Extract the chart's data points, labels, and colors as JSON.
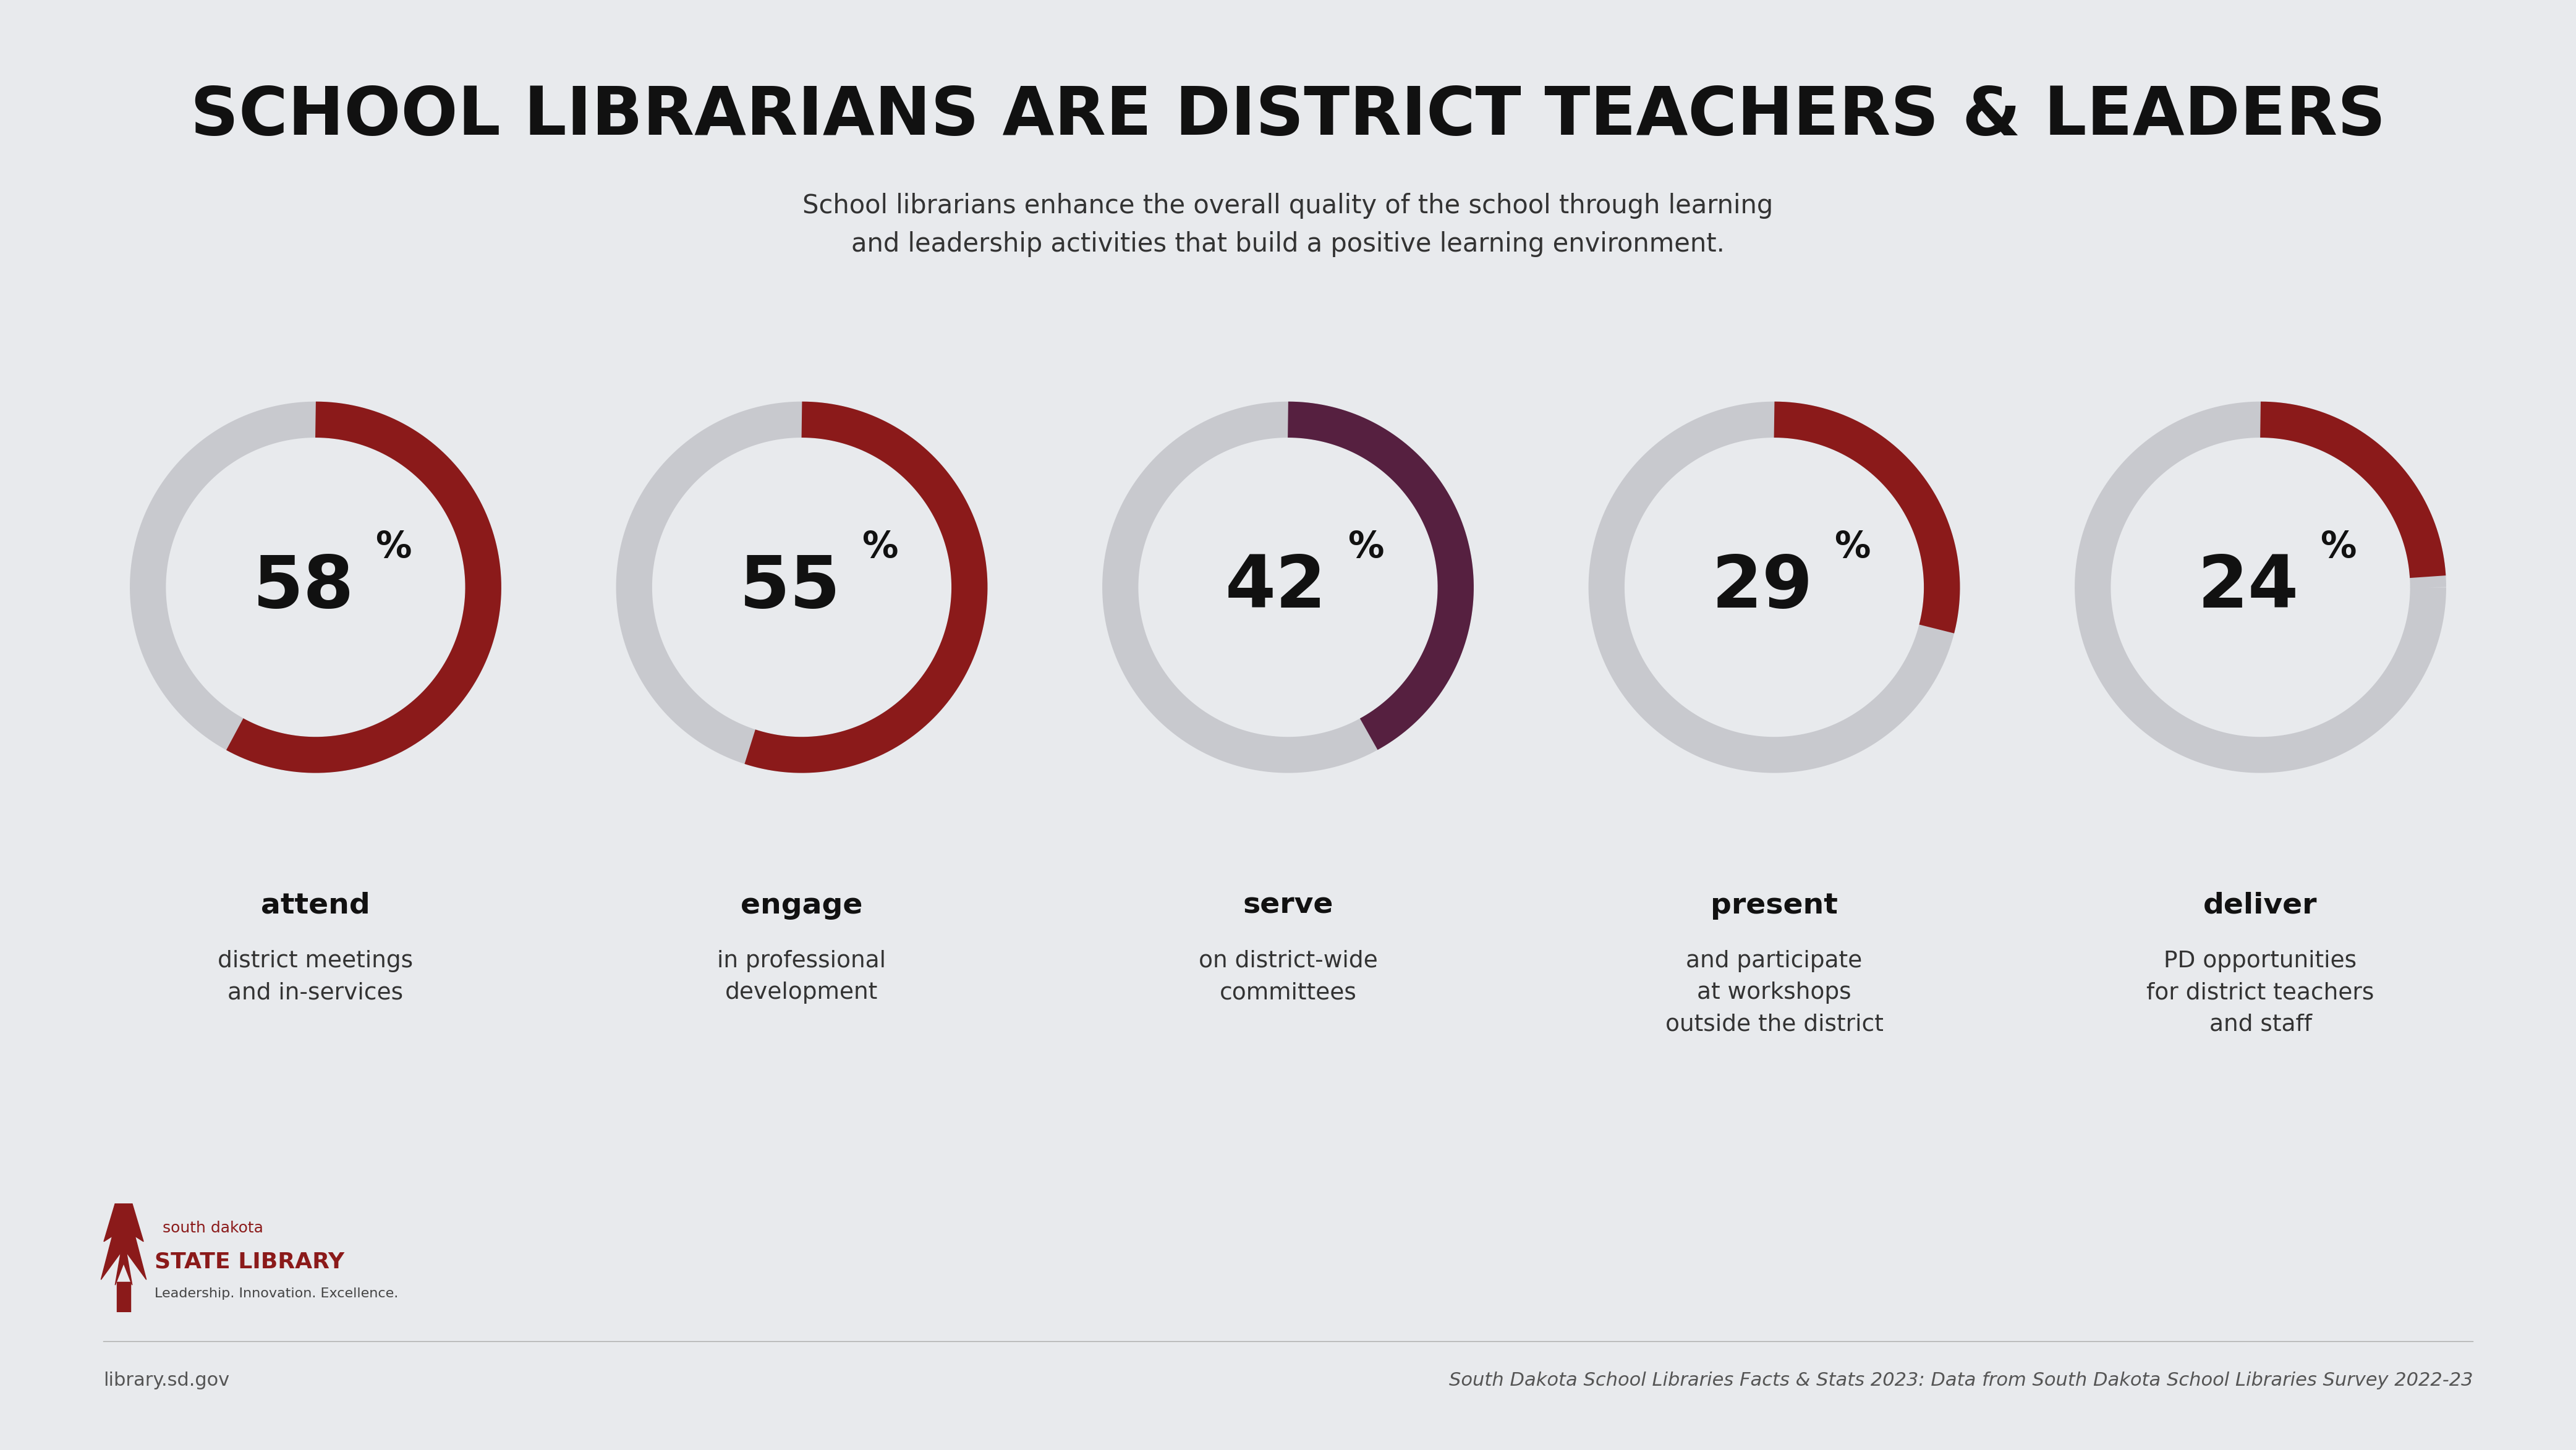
{
  "background_color": "#E8EAED",
  "title": "SCHOOL LIBRARIANS ARE DISTRICT TEACHERS & LEADERS",
  "subtitle": "School librarians enhance the overall quality of the school through learning\nand leadership activities that build a positive learning environment.",
  "title_fontsize": 78,
  "subtitle_fontsize": 30,
  "charts": [
    {
      "pct": 58,
      "color": "#8B1A1A",
      "label_bold": "attend",
      "label_text": "district meetings\nand in-services"
    },
    {
      "pct": 55,
      "color": "#8B1A1A",
      "label_bold": "engage",
      "label_text": "in professional\ndevelopment"
    },
    {
      "pct": 42,
      "color": "#562040",
      "label_bold": "serve",
      "label_text": "on district-wide\ncommittees"
    },
    {
      "pct": 29,
      "color": "#8B1A1A",
      "label_bold": "present",
      "label_text": "and participate\nat workshops\noutside the district"
    },
    {
      "pct": 24,
      "color": "#8B1A1A",
      "label_bold": "deliver",
      "label_text": "PD opportunities\nfor district teachers\nand staff"
    }
  ],
  "gray_color": "#C8C9CE",
  "donut_linewidth": 42,
  "pct_fontsize": 85,
  "pct_sup_fontsize": 42,
  "label_bold_fontsize": 34,
  "label_text_fontsize": 27,
  "footer_left": "library.sd.gov",
  "footer_right": "South Dakota School Libraries Facts & Stats 2023: Data from South Dakota School Libraries Survey 2022-23",
  "footer_fontsize": 22,
  "logo_text_1": "south dakota",
  "logo_text_2": "STATE LIBRARY",
  "logo_text_3": "Leadership. Innovation. Excellence."
}
